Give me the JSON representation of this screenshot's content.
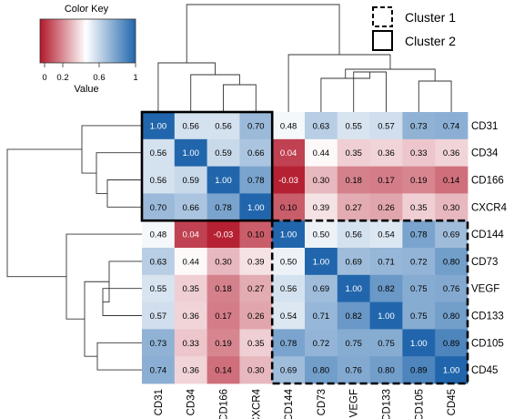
{
  "chart_data": {
    "type": "heatmap",
    "rows": [
      "CD31",
      "CD34",
      "CD166",
      "CXCR4",
      "CD144",
      "CD73",
      "VEGF",
      "CD133",
      "CD105",
      "CD45"
    ],
    "cols": [
      "CD31",
      "CD34",
      "CD166",
      "CXCR4",
      "CD144",
      "CD73",
      "VEGF",
      "CD133",
      "CD105",
      "CD45"
    ],
    "values": [
      [
        "1.00",
        "0.56",
        "0.56",
        "0.70",
        "0.48",
        "0.63",
        "0.55",
        "0.57",
        "0.73",
        "0.74"
      ],
      [
        "0.56",
        "1.00",
        "0.59",
        "0.66",
        "0.04",
        "0.44",
        "0.35",
        "0.36",
        "0.33",
        "0.36"
      ],
      [
        "0.56",
        "0.59",
        "1.00",
        "0.78",
        "-0.03",
        "0.30",
        "0.18",
        "0.17",
        "0.19",
        "0.14"
      ],
      [
        "0.70",
        "0.66",
        "0.78",
        "1.00",
        "0.10",
        "0.39",
        "0.27",
        "0.26",
        "0.35",
        "0.30"
      ],
      [
        "0.48",
        "0.04",
        "-0.03",
        "0.10",
        "1.00",
        "0.50",
        "0.56",
        "0.54",
        "0.78",
        "0.69"
      ],
      [
        "0.63",
        "0.44",
        "0.30",
        "0.39",
        "0.50",
        "1.00",
        "0.69",
        "0.71",
        "0.72",
        "0.80"
      ],
      [
        "0.55",
        "0.35",
        "0.18",
        "0.27",
        "0.56",
        "0.69",
        "1.00",
        "0.82",
        "0.75",
        "0.76"
      ],
      [
        "0.57",
        "0.36",
        "0.17",
        "0.26",
        "0.54",
        "0.71",
        "0.82",
        "1.00",
        "0.75",
        "0.80"
      ],
      [
        "0.73",
        "0.33",
        "0.19",
        "0.35",
        "0.78",
        "0.72",
        "0.75",
        "0.75",
        "1.00",
        "0.89"
      ],
      [
        "0.74",
        "0.36",
        "0.14",
        "0.30",
        "0.69",
        "0.80",
        "0.76",
        "0.80",
        "0.89",
        "1.00"
      ]
    ],
    "color_key": {
      "title": "Color Key",
      "xlabel": "Value",
      "ticks": [
        "0",
        "0.2",
        "0.6",
        "1"
      ],
      "range": [
        -0.05,
        1.0
      ],
      "colors": {
        "low": "#b2182b",
        "mid": "#ffffff",
        "high": "#2166ac"
      }
    },
    "legend": [
      {
        "label": "Cluster 1",
        "style": "dashed"
      },
      {
        "label": "Cluster 2",
        "style": "solid"
      }
    ],
    "clusters": [
      {
        "name": "Cluster 2",
        "style": "solid",
        "rows": [
          "CD31",
          "CD34",
          "CD166",
          "CXCR4"
        ],
        "cols": [
          "CD31",
          "CD34",
          "CD166",
          "CXCR4"
        ]
      },
      {
        "name": "Cluster 1",
        "style": "dashed",
        "rows": [
          "CD144",
          "CD73",
          "VEGF",
          "CD133",
          "CD105",
          "CD45"
        ],
        "cols": [
          "CD144",
          "CD73",
          "VEGF",
          "CD133",
          "CD105",
          "CD45"
        ]
      }
    ]
  }
}
